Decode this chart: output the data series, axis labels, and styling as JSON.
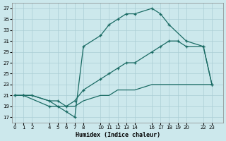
{
  "xlabel": "Humidex (Indice chaleur)",
  "bg_color": "#cce8ec",
  "grid_color": "#aacdd4",
  "line_color": "#1a6b64",
  "ylim": [
    16,
    38
  ],
  "yticks": [
    17,
    19,
    21,
    23,
    25,
    27,
    29,
    31,
    33,
    35,
    37
  ],
  "xticks": [
    0,
    1,
    2,
    4,
    5,
    6,
    7,
    8,
    10,
    11,
    12,
    13,
    14,
    16,
    17,
    18,
    19,
    20,
    22,
    23
  ],
  "xlim": [
    -0.3,
    24.3
  ],
  "curve_upper_x": [
    0,
    1,
    4,
    5,
    6,
    7,
    8,
    10,
    11,
    12,
    13,
    14,
    16,
    17,
    18,
    20,
    22,
    23
  ],
  "curve_upper_y": [
    21,
    21,
    19,
    19,
    18,
    17,
    30,
    32,
    34,
    35,
    36,
    36,
    37,
    36,
    34,
    31,
    30,
    23
  ],
  "curve_mid_x": [
    0,
    1,
    2,
    4,
    5,
    6,
    7,
    8,
    10,
    11,
    12,
    13,
    14,
    16,
    17,
    18,
    19,
    20,
    22,
    23
  ],
  "curve_mid_y": [
    21,
    21,
    21,
    20,
    20,
    19,
    20,
    22,
    24,
    25,
    26,
    27,
    27,
    29,
    30,
    31,
    31,
    30,
    30,
    23
  ],
  "curve_low_x": [
    0,
    1,
    2,
    4,
    5,
    6,
    7,
    8,
    10,
    11,
    12,
    13,
    14,
    16,
    17,
    18,
    19,
    20,
    22,
    23
  ],
  "curve_low_y": [
    21,
    21,
    21,
    20,
    19,
    19,
    19,
    20,
    21,
    21,
    22,
    22,
    22,
    23,
    23,
    23,
    23,
    23,
    23,
    23
  ]
}
